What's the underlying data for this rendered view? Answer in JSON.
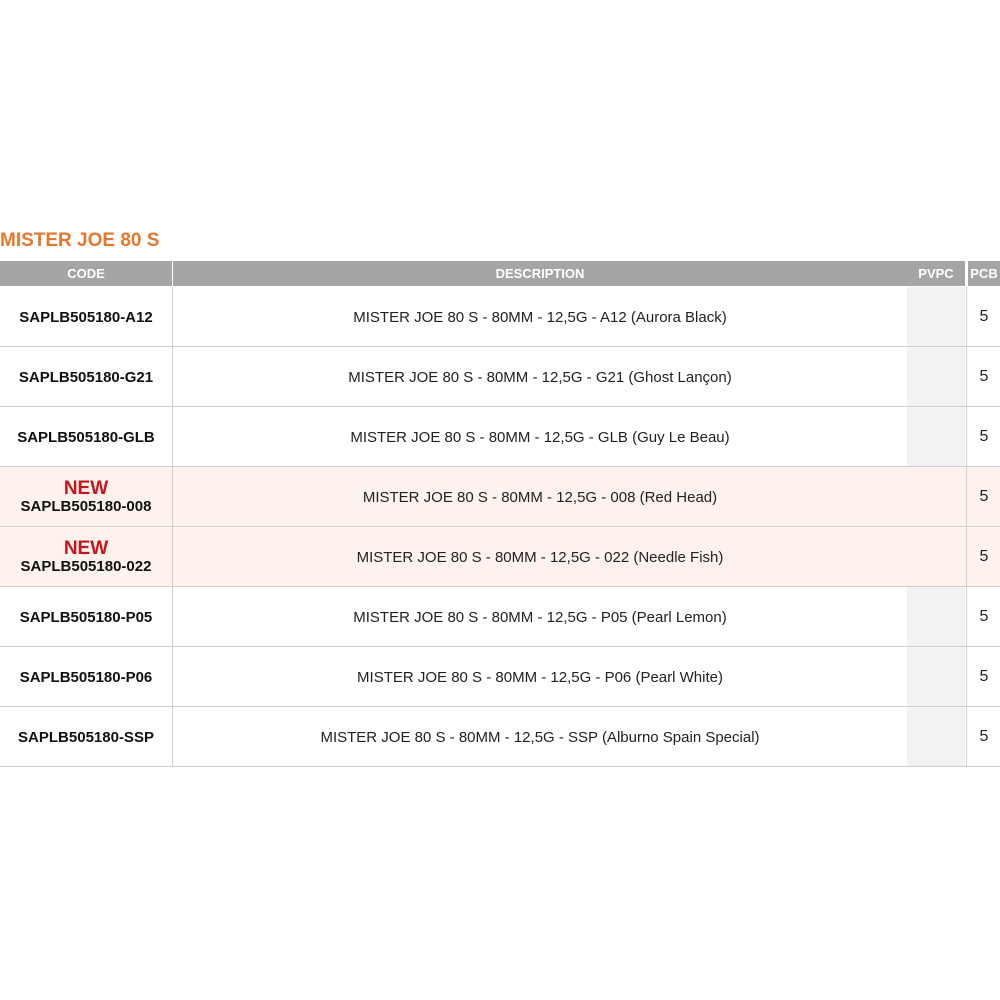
{
  "title": "MISTER JOE 80 S",
  "table": {
    "header": [
      "CODE",
      "DESCRIPTION",
      "PVPC",
      "PCB"
    ],
    "rows": [
      {
        "code": "SAPLB505180-A12",
        "description": "MISTER JOE 80 S - 80MM - 12,5G - A12 (Aurora Black)",
        "pcb": 5
      },
      {
        "code": "SAPLB505180-G21",
        "description": "MISTER JOE 80 S - 80MM - 12,5G - G21 (Ghost Lançon)",
        "pcb": 5
      },
      {
        "code": "SAPLB505180-GLB",
        "description": "MISTER JOE 80 S - 80MM - 12,5G - GLB (Guy Le Beau)",
        "pcb": 5
      },
      {
        "badge": "NEW",
        "code": "SAPLB505180-008",
        "description": "MISTER JOE 80 S - 80MM - 12,5G - 008 (Red Head)",
        "pcb": 5
      },
      {
        "badge": "NEW",
        "code": "SAPLB505180-022",
        "description": "MISTER JOE 80 S - 80MM - 12,5G - 022 (Needle Fish)",
        "pcb": 5
      },
      {
        "code": "SAPLB505180-P05",
        "description": "MISTER JOE 80 S - 80MM - 12,5G - P05 (Pearl Lemon)",
        "pcb": 5
      },
      {
        "code": "SAPLB505180-P06",
        "description": "MISTER JOE 80 S - 80MM - 12,5G - P06 (Pearl White)",
        "pcb": 5
      },
      {
        "code": "SAPLB505180-SSP",
        "description": "MISTER JOE 80 S - 80MM - 12,5G - SSP (Alburno Spain Special)",
        "pcb": 5
      }
    ]
  }
}
